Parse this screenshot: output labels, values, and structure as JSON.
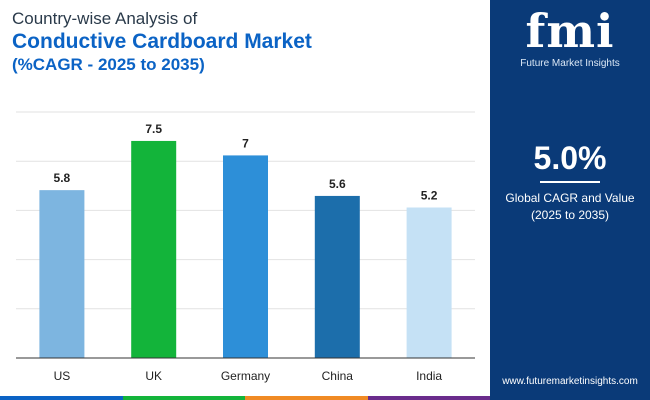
{
  "title": {
    "line1": "Country-wise Analysis of",
    "line2": "Conductive Cardboard Market",
    "line3": "(%CAGR - 2025 to 2035)"
  },
  "sidebar": {
    "logo_text": "fmi",
    "logo_subtext": "Future Market Insights",
    "cagr_value": "5.0%",
    "cagr_label_line1": "Global CAGR and Value",
    "cagr_label_line2": "(2025 to 2035)",
    "website": "www.futuremarketinsights.com",
    "background_color": "#0a3a78"
  },
  "chart_data": {
    "type": "bar",
    "categories": [
      "US",
      "UK",
      "Germany",
      "China",
      "India"
    ],
    "values": [
      5.8,
      7.5,
      7,
      5.6,
      5.2
    ],
    "value_labels": [
      "5.8",
      "7.5",
      "7",
      "5.6",
      "5.2"
    ],
    "colors": [
      "#7db5e0",
      "#13b43a",
      "#2d8fd8",
      "#1c6eab",
      "#c5e1f5"
    ],
    "ylim": [
      0,
      8.5
    ],
    "grid": true,
    "title": "Conductive Cardboard Market",
    "xlabel": "",
    "ylabel": ""
  },
  "bottom_bar_colors": [
    "#0b63c5",
    "#13b43a",
    "#f08a24",
    "#6a2c8c"
  ]
}
